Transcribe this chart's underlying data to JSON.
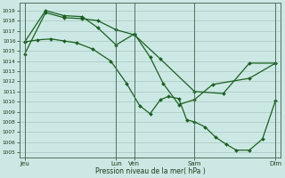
{
  "bg_color": "#cce8e4",
  "grid_color": "#a8c8c0",
  "line_color": "#1a6020",
  "xlabel": "Pression niveau de la mer( hPa )",
  "ylim_min": 1004.5,
  "ylim_max": 1019.8,
  "xlim_min": 0,
  "xlim_max": 100,
  "xtick_positions": [
    2,
    37,
    44,
    67,
    98
  ],
  "xtick_labels": [
    "Jeu",
    "Lun",
    "Ven",
    "Sam",
    "Dim"
  ],
  "line1_x": [
    2,
    10,
    17,
    24,
    30,
    37,
    44,
    54,
    67,
    78,
    88,
    98
  ],
  "line1_y": [
    1014.7,
    1018.8,
    1018.3,
    1018.2,
    1018.0,
    1017.1,
    1016.6,
    1014.2,
    1011.0,
    1010.8,
    1013.8,
    1013.8
  ],
  "line2_x": [
    2,
    10,
    17,
    24,
    30,
    37,
    44,
    50,
    55,
    61,
    67,
    74,
    88,
    98
  ],
  "line2_y": [
    1015.9,
    1019.0,
    1018.5,
    1018.4,
    1017.3,
    1015.6,
    1016.7,
    1014.4,
    1011.8,
    1009.7,
    1010.2,
    1011.7,
    1012.3,
    1013.8
  ],
  "line3_x": [
    2,
    7,
    12,
    17,
    22,
    28,
    35,
    41,
    46,
    50,
    54,
    57,
    61,
    64,
    67,
    71,
    75,
    79,
    83,
    88,
    93,
    98
  ],
  "line3_y": [
    1015.9,
    1016.1,
    1016.2,
    1016.0,
    1015.8,
    1015.2,
    1014.0,
    1011.8,
    1009.6,
    1008.8,
    1010.2,
    1010.5,
    1010.3,
    1008.2,
    1008.0,
    1007.5,
    1006.5,
    1005.8,
    1005.2,
    1005.2,
    1006.3,
    1010.1
  ]
}
